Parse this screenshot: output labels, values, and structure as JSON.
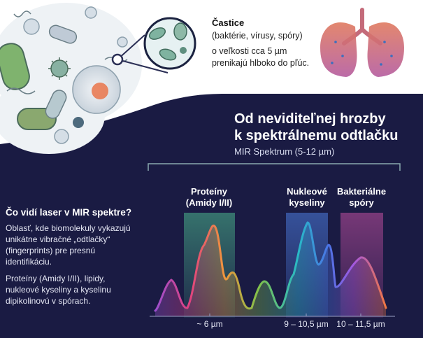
{
  "header": {
    "particles_title": "Častice",
    "particles_subtitle": "(baktérie, vírusy, spóry)",
    "particles_desc_line1": "o veľkosti cca 5 µm",
    "particles_desc_line2": "prenikajú hlboko do pľúc."
  },
  "main": {
    "title_line1": "Od neviditeľnej hrozby",
    "title_line2": "k spektrálnemu odtlačku",
    "spectrum_range": "MIR Spektrum (5-12 µm)"
  },
  "sidebar": {
    "question": "Čo vidí laser v MIR spektre?",
    "para1": [
      "Oblasť, kde biomolekuly vykazujú",
      "unikátne vibračné „odtlačky“",
      "(fingerprints) pre presnú",
      "identifikáciu."
    ],
    "para2": [
      "Proteíny (Amidy I/II), lipidy,",
      "nukleové kyseliny a kyselinu",
      "dipikolinovú v spórach."
    ]
  },
  "bands": [
    {
      "label_line1": "Proteíny",
      "label_line2": "(Amidy I/II)",
      "range_label": "~ 6 µm",
      "color": "#3f8f7a"
    },
    {
      "label_line1": "Nukleové",
      "label_line2": "kyseliny",
      "range_label": "9 – 10,5 µm",
      "color": "#3d5fb0"
    },
    {
      "label_line1": "Bakteriálne",
      "label_line2": "spóry",
      "range_label": "10 – 11,5 µm",
      "color": "#8e3f84"
    }
  ],
  "colors": {
    "dark_panel": "#1a1b43",
    "spectrum_gradient": [
      "#9b4fcf",
      "#e0417f",
      "#f0963c",
      "#7fc24b",
      "#28b9c7",
      "#4b74e6",
      "#a458e0",
      "#f07742"
    ]
  }
}
